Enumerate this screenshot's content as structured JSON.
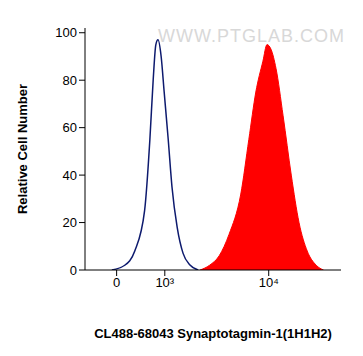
{
  "chart_data": {
    "type": "area",
    "x_label": "CL488-68043 Synaptotagmin-1(1H1H2)",
    "y_label": "Relative Cell Number",
    "annotations": [
      "WWW.PTGLAB.COM"
    ],
    "log": "x",
    "xlim": [
      -600,
      45000
    ],
    "xticks": [
      0,
      {
        "value": 1000,
        "label": "10³"
      },
      {
        "value": 10000,
        "label": "10⁴"
      }
    ],
    "ylim": [
      0,
      102
    ],
    "yticks": [
      0,
      20,
      40,
      60,
      80,
      100
    ],
    "grid": false,
    "series": [
      {
        "type": "line",
        "color": "#0d1a6e",
        "x": [
          -85,
          144,
          328,
          522,
          635,
          709,
          772,
          824,
          903,
          983,
          1096,
          1208,
          1375,
          1584,
          1870,
          2236
        ],
        "values": [
          0,
          2,
          8,
          25,
          55,
          80,
          95,
          97,
          90,
          75,
          55,
          35,
          18,
          7,
          2,
          0
        ]
      },
      {
        "type": "area",
        "color": "#ff0000",
        "x": [
          2330,
          2870,
          3530,
          4350,
          5576,
          6600,
          7640,
          8860,
          9650,
          10500,
          11640,
          13500,
          16000,
          18800,
          22300,
          26900,
          31300
        ],
        "values": [
          0,
          2,
          6,
          15,
          32,
          55,
          75,
          88,
          95,
          93,
          85,
          65,
          40,
          20,
          8,
          2,
          0
        ]
      }
    ]
  }
}
